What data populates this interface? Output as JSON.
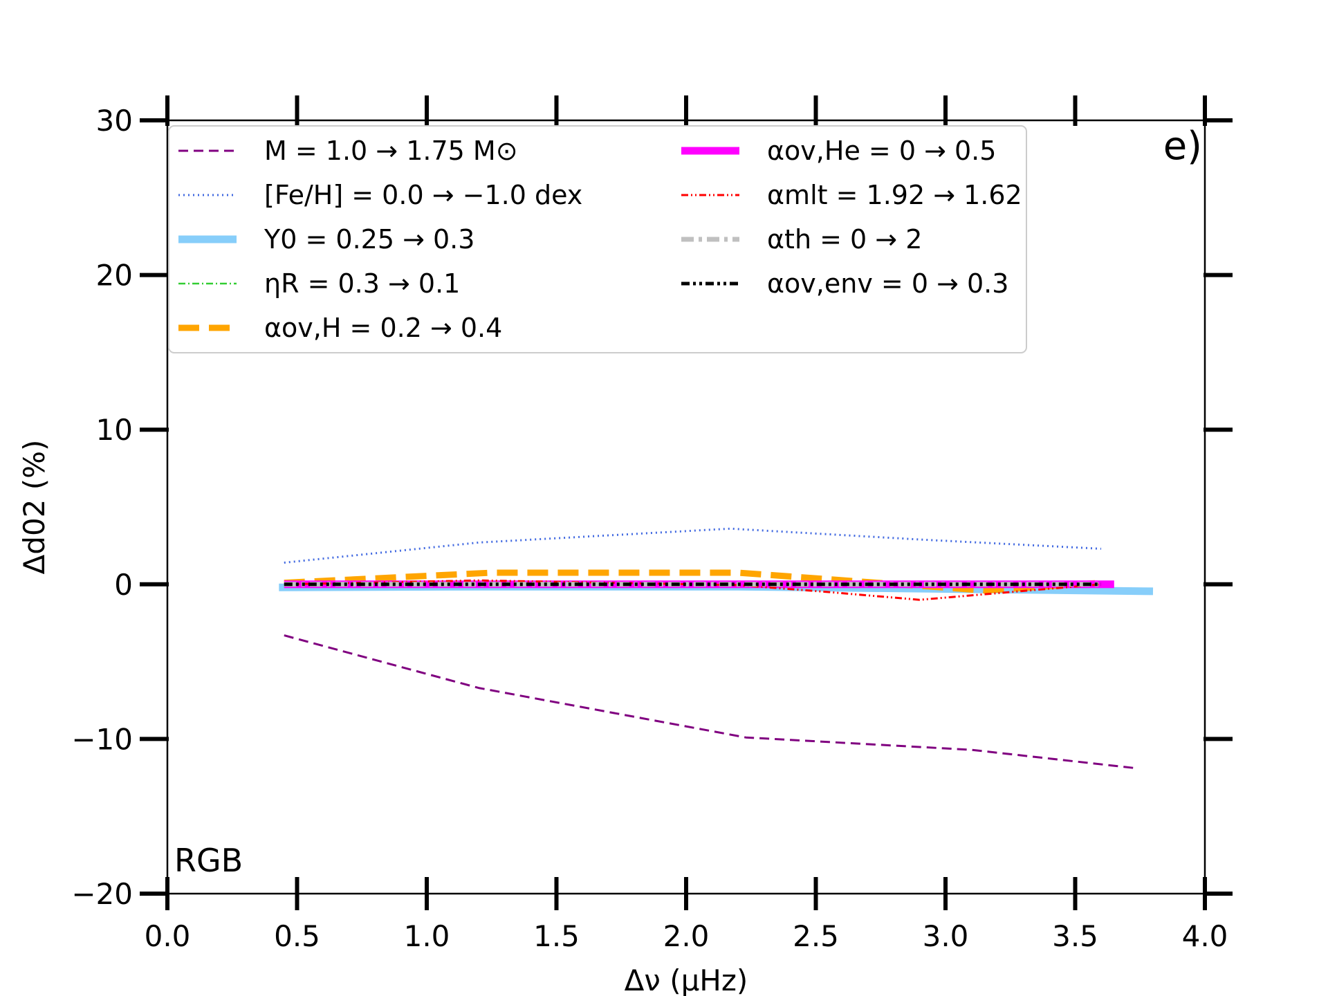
{
  "chart_data": {
    "type": "line",
    "panel_label": "e)",
    "annotation": "RGB",
    "annotation_color": "#0000ff",
    "xlabel": "Δν (μHz)",
    "ylabel": "Δd02 (%)",
    "xlim": [
      0.0,
      4.0
    ],
    "ylim": [
      -20,
      30
    ],
    "xticks": [
      "0.0",
      "0.5",
      "1.0",
      "1.5",
      "2.0",
      "2.5",
      "3.0",
      "3.5",
      "4.0"
    ],
    "yticks": [
      "−20",
      "−10",
      "0",
      "10",
      "20",
      "30"
    ],
    "series": [
      {
        "name": "M = 1.0 → 1.75 M⊙",
        "color": "#800080",
        "style": "dashed",
        "x": [
          0.45,
          1.2,
          2.23,
          3.1,
          3.74
        ],
        "y": [
          -3.3,
          -6.7,
          -9.9,
          -10.7,
          -11.9
        ]
      },
      {
        "name": "[Fe/H] = 0.0 → −1.0 dex",
        "color": "#4169e1",
        "style": "dotted",
        "x": [
          0.45,
          1.2,
          2.17,
          2.9,
          3.6
        ],
        "y": [
          1.4,
          2.7,
          3.6,
          2.9,
          2.3
        ]
      },
      {
        "name": "Y0 = 0.25 → 0.3",
        "color": "#87cefa",
        "style": "thick",
        "x": [
          0.43,
          1.2,
          2.2,
          3.0,
          3.8
        ],
        "y": [
          -0.2,
          -0.15,
          -0.15,
          -0.3,
          -0.45
        ]
      },
      {
        "name": "ηR = 0.3 → 0.1",
        "color": "#32cd32",
        "style": "dashdot",
        "x": [
          0.45,
          1.2,
          2.2,
          2.9,
          3.6
        ],
        "y": [
          0.0,
          0.1,
          0.0,
          0.0,
          0.0
        ]
      },
      {
        "name": "αov,H = 0.2 → 0.4",
        "color": "#ffa500",
        "style": "longdash",
        "x": [
          0.45,
          1.25,
          2.2,
          2.9,
          3.15,
          3.6
        ],
        "y": [
          0.1,
          0.75,
          0.75,
          -0.1,
          -0.4,
          0.1
        ]
      },
      {
        "name": "αov,He = 0 → 0.5",
        "color": "#ff00ff",
        "style": "thick",
        "x": [
          0.45,
          1.2,
          2.2,
          2.9,
          3.65
        ],
        "y": [
          0.0,
          0.0,
          0.0,
          0.0,
          0.0
        ]
      },
      {
        "name": "αmlt = 1.92 → 1.62",
        "color": "#ff0000",
        "style": "dashdotdot",
        "x": [
          0.45,
          1.2,
          2.2,
          2.55,
          2.9,
          3.6
        ],
        "y": [
          0.0,
          0.25,
          -0.05,
          -0.5,
          -1.0,
          0.0
        ]
      },
      {
        "name": "αth = 0 → 2",
        "color": "#c0c0c0",
        "style": "graydashdot",
        "x": [
          0.45,
          1.2,
          2.2,
          2.9,
          3.6
        ],
        "y": [
          0.0,
          0.0,
          0.0,
          0.0,
          0.0
        ]
      },
      {
        "name": "αov,env = 0 → 0.3",
        "color": "#000000",
        "style": "blackdashdot",
        "x": [
          0.45,
          1.2,
          2.2,
          2.9,
          3.6
        ],
        "y": [
          0.0,
          0.0,
          0.0,
          0.0,
          0.0
        ]
      }
    ]
  }
}
